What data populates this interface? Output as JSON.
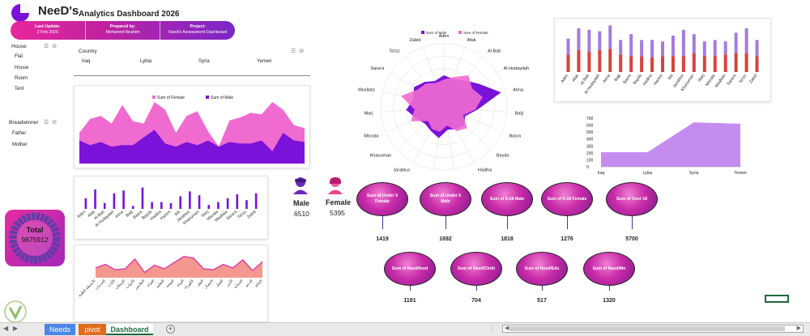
{
  "header": {
    "brand": "NeeD's",
    "title": "Analytics Dashboard 2026",
    "info": [
      {
        "label": "Last Update:",
        "value": "2 Feb 2026"
      },
      {
        "label": "Prepared by:",
        "value": "Mohamed Ibrahim"
      },
      {
        "label": "Project:",
        "value": "Need's Assessment Dashboard"
      }
    ]
  },
  "slicers": {
    "house": {
      "title": "House",
      "items": [
        "Flat",
        "House",
        "Room",
        "Tent"
      ]
    },
    "breadwinner": {
      "title": "Breadwinner",
      "items": [
        "Father",
        "Mother"
      ]
    },
    "country": {
      "title": "Country",
      "items": [
        "Iraq",
        "Lybia",
        "Syria",
        "Yemen"
      ]
    }
  },
  "total": {
    "label": "Total",
    "value": "9875912"
  },
  "gender": {
    "male": {
      "label": "Male",
      "value": "6510"
    },
    "female": {
      "label": "Female",
      "value": "5395"
    }
  },
  "bubbles": [
    {
      "label": "Sum of Under 5 Female",
      "value": "1419"
    },
    {
      "label": "Sum of Under 5 Male",
      "value": "1692"
    },
    {
      "label": "Sum of 6-18 Male",
      "value": "1818"
    },
    {
      "label": "Sum of 6-18 Female",
      "value": "1276"
    },
    {
      "label": "Sum of Over 18",
      "value": "5700"
    },
    {
      "label": "Sum of Need/food",
      "value": "1191"
    },
    {
      "label": "Sum of Need/Cloth",
      "value": "704"
    },
    {
      "label": "Sum of Need/Edu",
      "value": "517"
    },
    {
      "label": "Sum of Need/Mo",
      "value": "1320"
    }
  ],
  "tabs": [
    "Needs",
    "pivot",
    "Dashboard"
  ],
  "colors": {
    "pink": "#f06bd0",
    "purple": "#7a12d9",
    "magenta": "#d62ba6",
    "salmon": "#f4978e"
  },
  "chart_data": [
    {
      "id": "area_gender",
      "type": "area",
      "legend": [
        "Sum of Female",
        "Sum of Male"
      ],
      "legend_position": "top",
      "series": [
        {
          "name": "Sum of Female",
          "values": [
            40,
            58,
            62,
            52,
            76,
            55,
            52,
            80,
            70,
            40,
            62,
            68,
            42,
            22,
            56,
            60,
            66,
            64,
            80,
            70,
            50,
            46
          ]
        },
        {
          "name": "Sum of Male",
          "values": [
            30,
            24,
            28,
            22,
            24,
            24,
            34,
            44,
            26,
            22,
            28,
            24,
            30,
            22,
            28,
            26,
            26,
            30,
            16,
            40,
            30,
            28
          ]
        }
      ]
    },
    {
      "id": "columns_cities",
      "type": "bar",
      "categories": [
        "Aden",
        "Afak",
        "Al Bab",
        "Al Hudaydah",
        "Atma",
        "Balji",
        "Basra",
        "Bayda",
        "Hadiha",
        "Harem",
        "Ibb",
        "Jarablus",
        "Khanuman",
        "Marj",
        "Misrata",
        "Msallata",
        "Sana'a",
        "Ta'izz",
        "Zabid"
      ],
      "values": [
        22,
        40,
        12,
        32,
        38,
        6,
        44,
        14,
        14,
        12,
        26,
        36,
        28,
        8,
        14,
        22,
        30,
        18,
        32
      ]
    },
    {
      "id": "area_arabic",
      "type": "area",
      "series": [
        {
          "name": "",
          "values": [
            22,
            30,
            18,
            20,
            42,
            12,
            28,
            20,
            34,
            48,
            44,
            20,
            18,
            30,
            22,
            40,
            16,
            36
          ]
        }
      ],
      "categories": [
        "الأنشطة الطبية",
        "الخدمات",
        "الأثاث",
        "الإسكان",
        "الأدوات",
        "الملابس",
        "الغذاء",
        "التعليم",
        "الصحة",
        "المياه",
        "الكهرباء",
        "النقل",
        "الاتصال",
        "العمل",
        "الأمن",
        "الحماية",
        "الدعم",
        "الإغاثة"
      ]
    },
    {
      "id": "radar_cities",
      "type": "radar",
      "legend": [
        "Sum of Male",
        "Sum of Female"
      ],
      "legend_position": "top",
      "categories": [
        "Aden",
        "Afak",
        "Al Bab",
        "Al Hudaydah",
        "Atma",
        "Balji",
        "Basra",
        "Bayda",
        "Hadiha",
        "Harem",
        "Ibb",
        "Jarablus",
        "Khanuman",
        "Misrata",
        "Marj",
        "Msallata",
        "Sana'a",
        "Ta'izz",
        "Zabid"
      ],
      "series": [
        {
          "name": "Sum of Male",
          "values": [
            300,
            280,
            320,
            400,
            560,
            320,
            220,
            260,
            240,
            220,
            300,
            260,
            240,
            280,
            360,
            300,
            340,
            300,
            260
          ]
        },
        {
          "name": "Sum of Female",
          "values": [
            260,
            300,
            380,
            320,
            380,
            300,
            200,
            300,
            260,
            180,
            240,
            240,
            200,
            340,
            280,
            420,
            300,
            280,
            240
          ]
        }
      ]
    },
    {
      "id": "stacked_cities",
      "type": "bar",
      "categories": [
        "Aden",
        "Afak",
        "Al Bab",
        "Al Hudaydah",
        "Atma",
        "Balji",
        "Basra",
        "Bayda",
        "Hadiha",
        "Harem",
        "Ibb",
        "Jarablus",
        "Khanuman",
        "Marj",
        "Misrata",
        "Msallata",
        "Sana'a",
        "Ta'izz",
        "Zabid"
      ],
      "series": [
        {
          "name": "Male",
          "values": [
            24,
            30,
            28,
            30,
            32,
            24,
            22,
            22,
            20,
            22,
            22,
            22,
            26,
            22,
            22,
            24,
            26,
            26,
            22
          ]
        },
        {
          "name": "Female",
          "values": [
            22,
            30,
            30,
            26,
            32,
            20,
            30,
            22,
            24,
            20,
            28,
            36,
            26,
            20,
            22,
            18,
            28,
            34,
            22
          ]
        }
      ]
    },
    {
      "id": "area_country",
      "type": "area",
      "categories": [
        "Iraq",
        "Lybia",
        "Syria",
        "Yemen"
      ],
      "values": [
        210,
        210,
        640,
        620
      ],
      "ylim": [
        0,
        700
      ],
      "yticks": [
        0,
        100,
        200,
        300,
        400,
        500,
        600,
        700
      ]
    }
  ]
}
